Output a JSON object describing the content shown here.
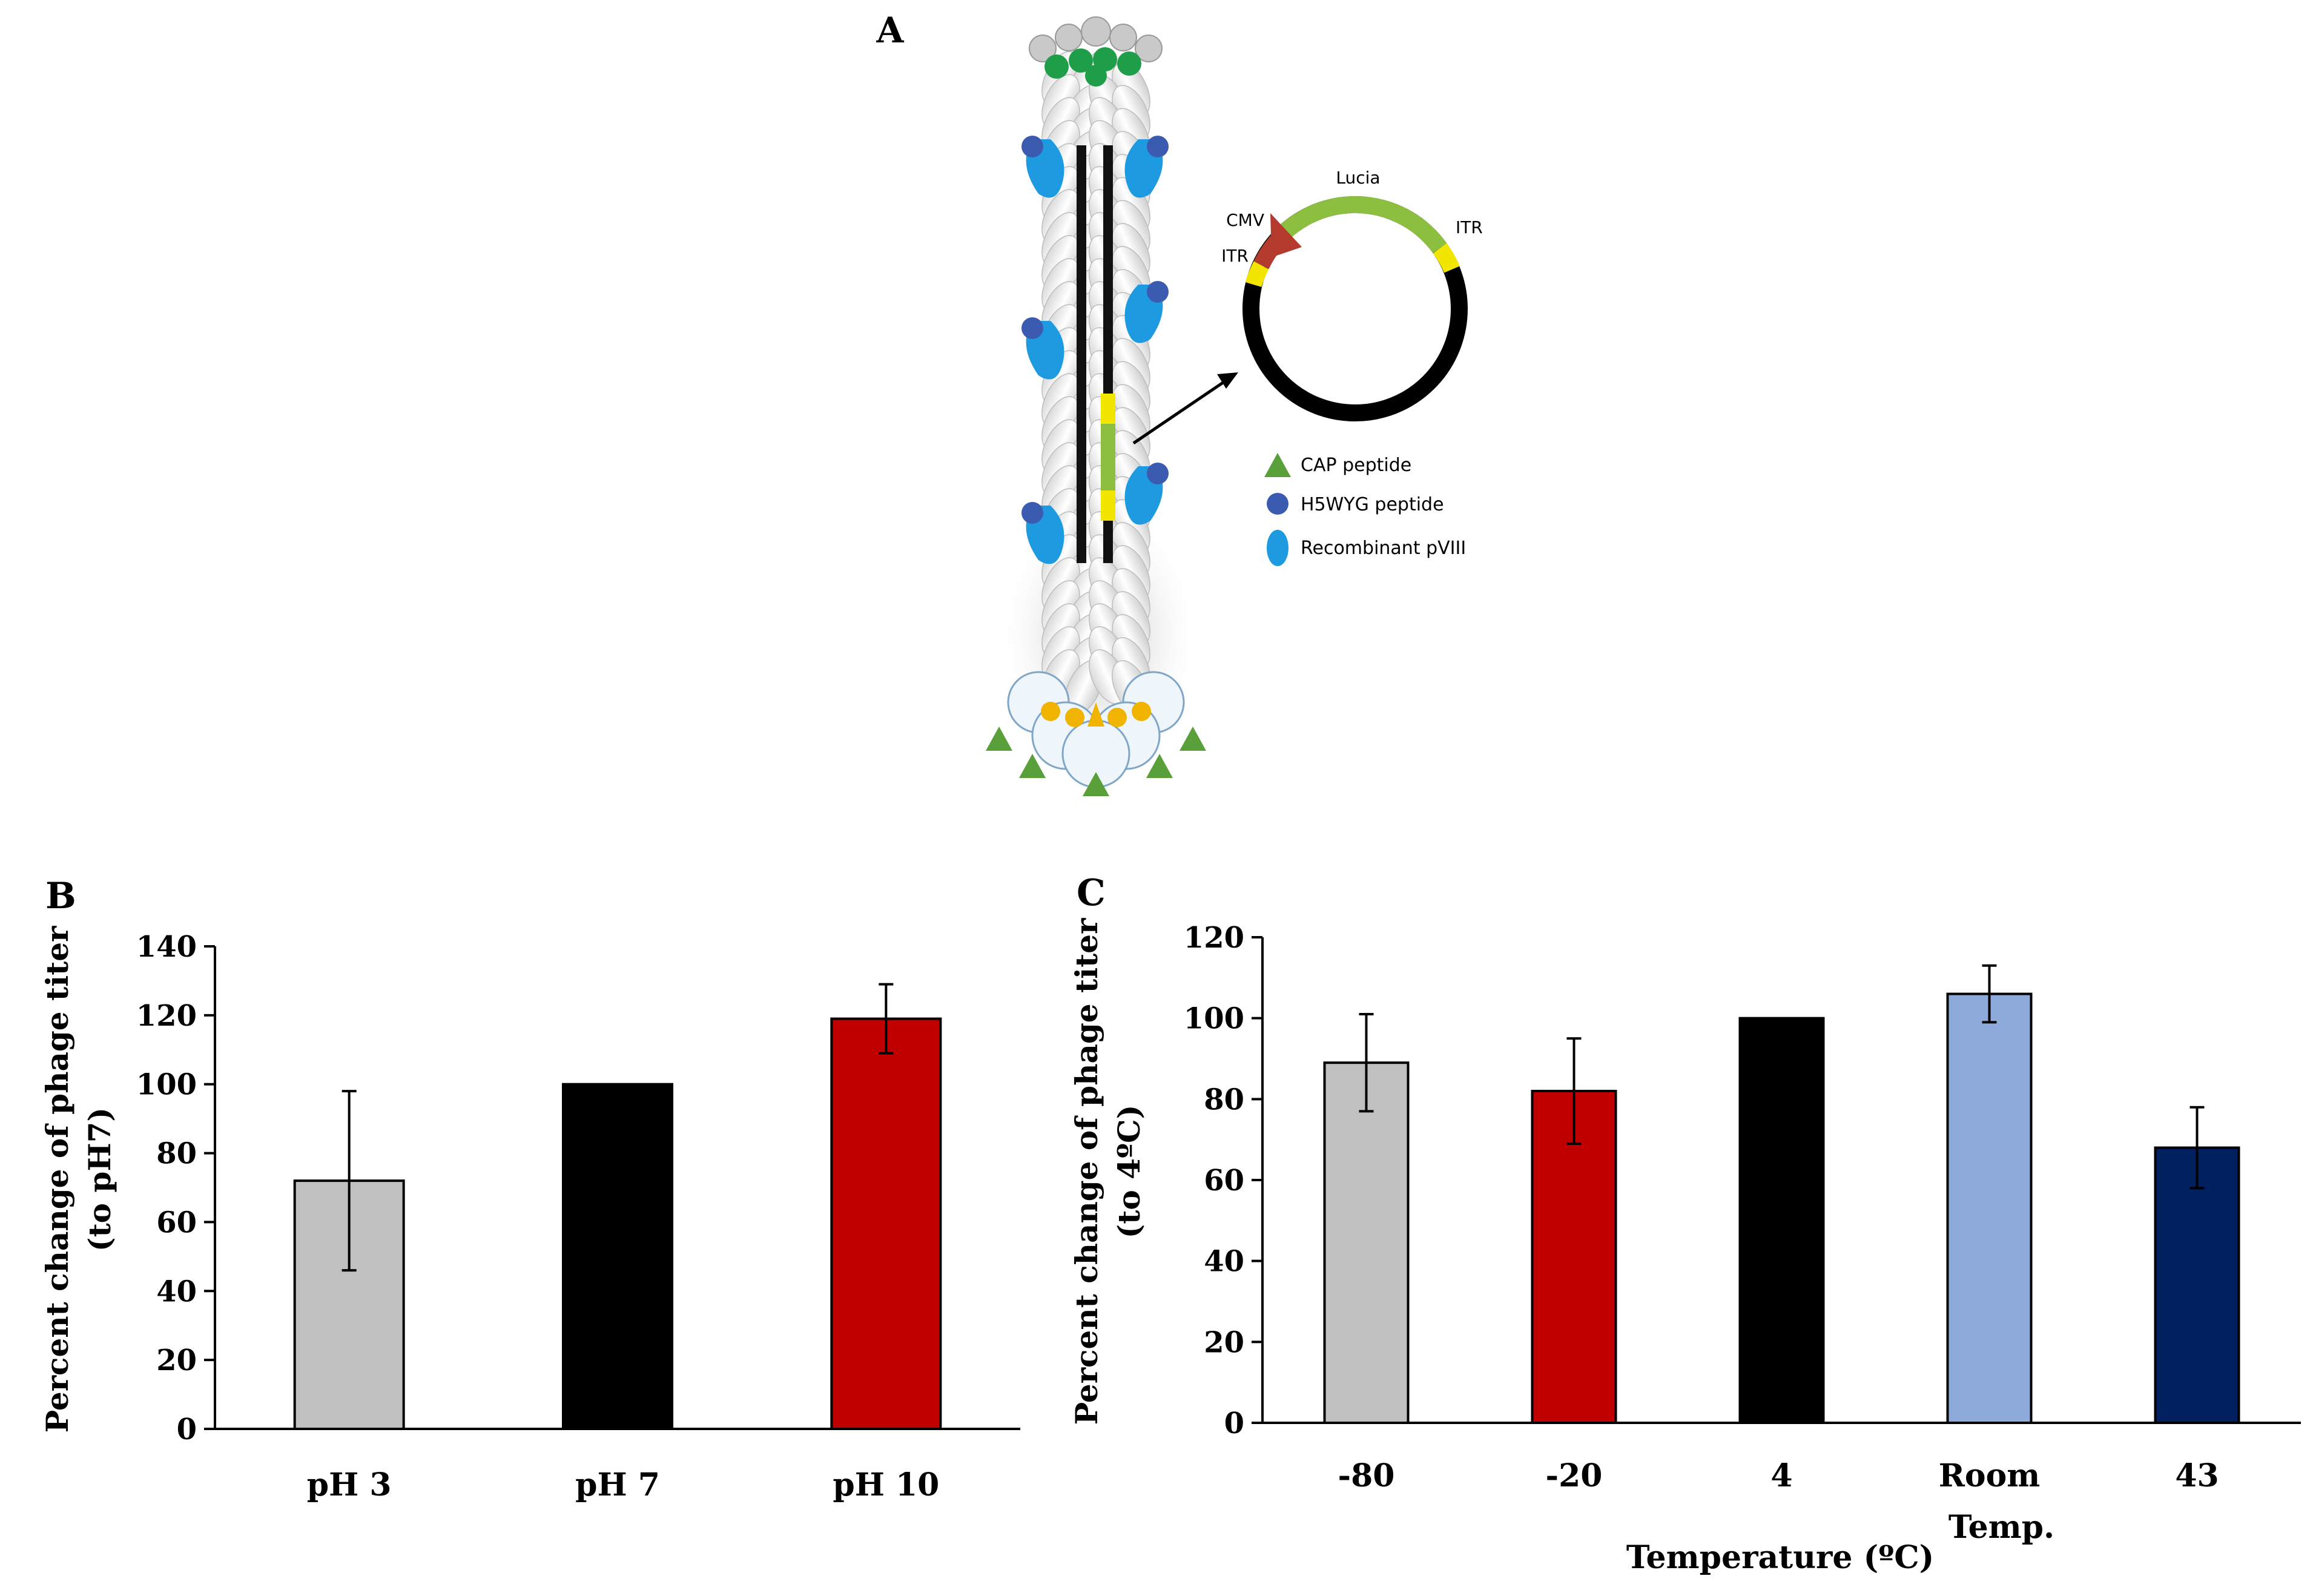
{
  "panel_a": {
    "letter": "A",
    "plasmid_labels": {
      "lucia": "Lucia",
      "cmv": "CMV",
      "itr_left": "ITR",
      "itr_right": "ITR"
    },
    "legend": [
      {
        "label": "CAP peptide",
        "color": "#5aa03a",
        "icon": "triangle-icon"
      },
      {
        "label": "H5WYG peptide",
        "color": "#3b5bb0",
        "icon": "circle-icon"
      },
      {
        "label": "Recombinant pVIII",
        "color": "#1e9be0",
        "icon": "ellipse-icon"
      }
    ]
  },
  "chart_data": [
    {
      "panel": "B",
      "type": "bar",
      "categories": [
        "pH 3",
        "pH 7",
        "pH 10"
      ],
      "values": [
        72,
        100,
        119
      ],
      "errors": [
        26,
        0,
        10
      ],
      "colors": [
        "#c0c0c0",
        "#000000",
        "#c00000"
      ],
      "title": "",
      "xlabel": "",
      "ylabel_line1": "Percent change of phage titer",
      "ylabel_line2": "(to pH7)",
      "ylim": [
        0,
        140
      ],
      "yticks": [
        "0",
        "20",
        "40",
        "60",
        "80",
        "100",
        "120",
        "140"
      ],
      "grid": false
    },
    {
      "panel": "C",
      "type": "bar",
      "categories": [
        "-80",
        "-20",
        "4",
        "Room",
        "43"
      ],
      "category_second_line": [
        "",
        "",
        "",
        "Temp.",
        ""
      ],
      "values": [
        89,
        82,
        100,
        106,
        68
      ],
      "errors": [
        12,
        13,
        0,
        7,
        10
      ],
      "colors": [
        "#c0c0c0",
        "#c00000",
        "#000000",
        "#8eaadb",
        "#002060"
      ],
      "title": "",
      "xlabel": "Temperature (ºC)",
      "ylabel_line1": "Percent change of phage titer",
      "ylabel_line2": "(to 4ºC)",
      "ylim": [
        0,
        120
      ],
      "yticks": [
        "0",
        "20",
        "40",
        "60",
        "80",
        "100",
        "120"
      ],
      "grid": false
    }
  ]
}
